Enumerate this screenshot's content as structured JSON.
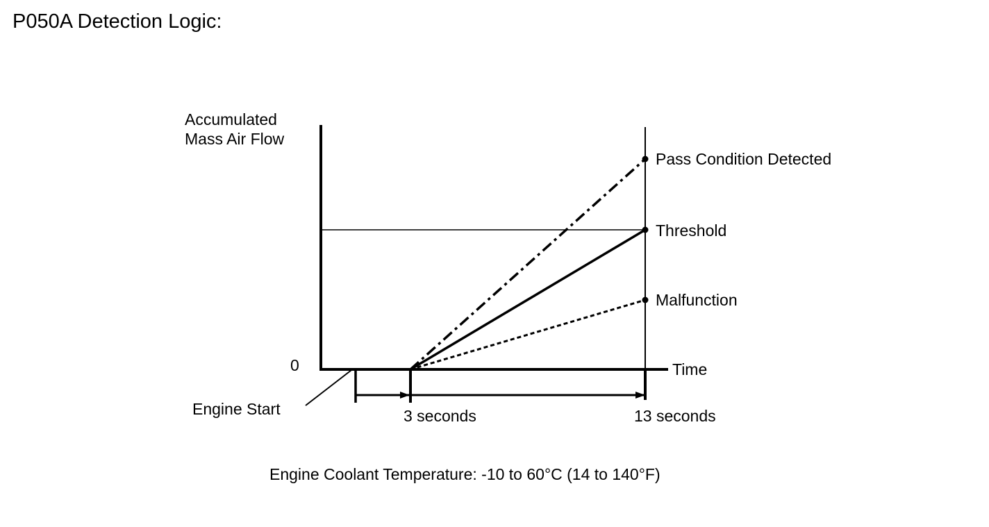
{
  "title": "P050A Detection Logic:",
  "y_axis_label": [
    "Accumulated",
    "Mass Air Flow"
  ],
  "origin_label": "0",
  "x_axis_label": "Time",
  "engine_start_label": "Engine Start",
  "time_marks": [
    "3 seconds",
    "13 seconds"
  ],
  "lines": [
    {
      "label": "Pass Condition Detected",
      "style": "dash-dot"
    },
    {
      "label": "Threshold",
      "style": "solid"
    },
    {
      "label": "Malfunction",
      "style": "dotted"
    }
  ],
  "footnote": "Engine Coolant Temperature: -10 to 60°C (14 to 140°F)",
  "colors": {
    "ink": "#000000",
    "background": "#ffffff"
  }
}
